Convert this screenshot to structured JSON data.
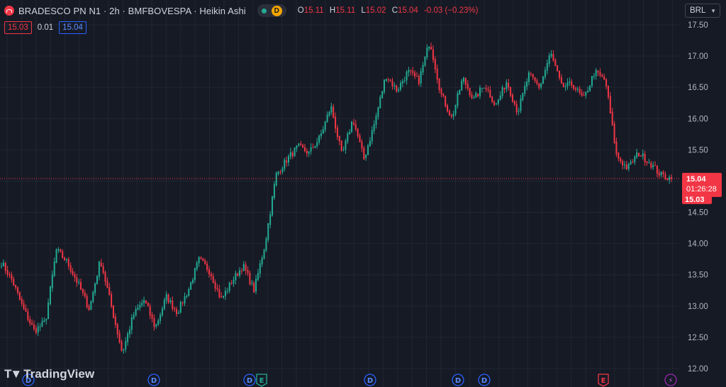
{
  "symbol": {
    "title": "BRADESCO PN N1 · 2h · BMFBOVESPA · Heikin Ashi",
    "status_letter": "D",
    "logo": "bradesco-logo-icon"
  },
  "ohlc": {
    "o_label": "O",
    "o_value": "15.11",
    "h_label": "H",
    "h_value": "15.11",
    "l_label": "L",
    "l_value": "15.02",
    "c_label": "C",
    "c_value": "15.04",
    "change": "-0.03 (−0.23%)"
  },
  "quote": {
    "bid": "15.03",
    "spread": "0.01",
    "ask": "15.04"
  },
  "currency": "BRL",
  "watermark": "TradingView",
  "last_price": {
    "price": "15.04",
    "countdown": "01:26:28",
    "bid": "15.03"
  },
  "axis": {
    "ticks": [
      "17.50",
      "17.00",
      "16.50",
      "16.00",
      "15.50",
      "15.00",
      "14.50",
      "14.00",
      "13.50",
      "13.00",
      "12.50",
      "12.00"
    ]
  },
  "events": [
    {
      "type": "dividend",
      "label": "D"
    },
    {
      "type": "dividend",
      "label": "D"
    },
    {
      "type": "dividend",
      "label": "D"
    },
    {
      "type": "earnings",
      "label": "E"
    },
    {
      "type": "dividend",
      "label": "D"
    },
    {
      "type": "dividend",
      "label": "D"
    },
    {
      "type": "dividend",
      "label": "D"
    },
    {
      "type": "earnings-recent",
      "label": "E"
    },
    {
      "type": "flash",
      "label": "⚡"
    }
  ],
  "colors": {
    "up": "#22ab94",
    "down": "#f23645",
    "background": "#161a25",
    "grid": "#232632",
    "axis_text": "#b2b5be"
  },
  "chart_data": {
    "type": "candlestick-heikin-ashi",
    "ylim": [
      12.0,
      17.5
    ],
    "price_anchors": [
      13.7,
      13.4,
      12.95,
      12.6,
      12.75,
      13.9,
      13.7,
      13.35,
      12.95,
      13.75,
      13.0,
      12.25,
      12.85,
      13.1,
      12.65,
      13.15,
      12.9,
      13.25,
      13.75,
      13.55,
      13.1,
      13.4,
      13.65,
      13.25,
      14.0,
      15.1,
      15.35,
      15.55,
      15.45,
      15.7,
      16.2,
      15.4,
      16.0,
      15.35,
      15.95,
      16.7,
      16.45,
      16.75,
      16.6,
      17.25,
      16.4,
      16.0,
      16.65,
      16.3,
      16.55,
      16.2,
      16.6,
      16.1,
      16.7,
      16.5,
      17.05,
      16.5,
      16.55,
      16.3,
      16.75,
      16.6,
      15.4,
      15.2,
      15.45,
      15.3,
      15.1,
      15.04
    ],
    "last_close": 15.04
  }
}
